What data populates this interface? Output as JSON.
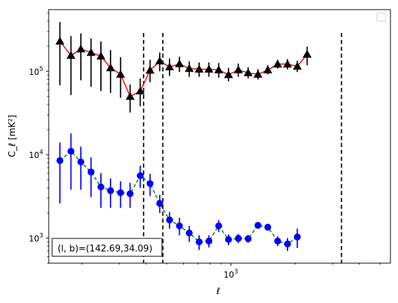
{
  "chart_data": {
    "type": "scatter",
    "title": "",
    "xlabel": "ℓ",
    "ylabel": "C_ℓ [mK²]",
    "x_scale": "log",
    "y_scale": "log",
    "xlim": [
      140,
      5600
    ],
    "ylim": [
      500,
      550000
    ],
    "x_ticks": [
      {
        "value": 1000,
        "label": "10^3"
      }
    ],
    "y_ticks": [
      {
        "value": 1000,
        "label": "10^3"
      },
      {
        "value": 10000,
        "label": "10^4"
      },
      {
        "value": 100000,
        "label": "10^5"
      }
    ],
    "vertical_lines": [
      390,
      480,
      3300
    ],
    "legend_placement": "upper-right (empty)",
    "annotation": "(l, b)=(142.69,34.09)",
    "series": [
      {
        "color": "#ff0000",
        "marker": "triangle",
        "marker_color": "#000000",
        "errorbar_color": "#000000",
        "line_style": "solid",
        "points": [
          {
            "x": 158,
            "y": 230000,
            "lo": 68000,
            "hi": 390000
          },
          {
            "x": 178,
            "y": 155000,
            "lo": 52000,
            "hi": 265000
          },
          {
            "x": 198,
            "y": 185000,
            "lo": 78000,
            "hi": 285000
          },
          {
            "x": 221,
            "y": 168000,
            "lo": 65000,
            "hi": 248000
          },
          {
            "x": 246,
            "y": 152000,
            "lo": 58000,
            "hi": 228000
          },
          {
            "x": 273,
            "y": 110000,
            "lo": 55000,
            "hi": 180000
          },
          {
            "x": 304,
            "y": 92000,
            "lo": 48000,
            "hi": 148000
          },
          {
            "x": 337,
            "y": 50000,
            "lo": 32000,
            "hi": 70000
          },
          {
            "x": 376,
            "y": 58000,
            "lo": 38000,
            "hi": 82000
          },
          {
            "x": 418,
            "y": 103000,
            "lo": 74000,
            "hi": 138000
          },
          {
            "x": 464,
            "y": 133000,
            "lo": 100000,
            "hi": 168000
          },
          {
            "x": 516,
            "y": 113000,
            "lo": 88000,
            "hi": 142000
          },
          {
            "x": 574,
            "y": 123000,
            "lo": 98000,
            "hi": 150000
          },
          {
            "x": 638,
            "y": 108000,
            "lo": 86000,
            "hi": 132000
          },
          {
            "x": 710,
            "y": 106000,
            "lo": 86000,
            "hi": 128000
          },
          {
            "x": 789,
            "y": 106000,
            "lo": 86000,
            "hi": 128000
          },
          {
            "x": 877,
            "y": 104000,
            "lo": 84000,
            "hi": 126000
          },
          {
            "x": 975,
            "y": 91000,
            "lo": 76000,
            "hi": 110000
          },
          {
            "x": 1084,
            "y": 104000,
            "lo": 86000,
            "hi": 124000
          },
          {
            "x": 1205,
            "y": 96000,
            "lo": 82000,
            "hi": 112000
          },
          {
            "x": 1340,
            "y": 92000,
            "lo": 80000,
            "hi": 106000
          },
          {
            "x": 1490,
            "y": 104000,
            "lo": 92000,
            "hi": 118000
          },
          {
            "x": 1657,
            "y": 122000,
            "lo": 108000,
            "hi": 138000
          },
          {
            "x": 1843,
            "y": 122000,
            "lo": 106000,
            "hi": 140000
          },
          {
            "x": 2049,
            "y": 115000,
            "lo": 98000,
            "hi": 134000
          },
          {
            "x": 2278,
            "y": 160000,
            "lo": 118000,
            "hi": 198000
          }
        ]
      },
      {
        "color": "#008000",
        "marker": "circle",
        "marker_color": "#0000ff",
        "errorbar_color": "#0000ff",
        "line_style": "dashed",
        "points": [
          {
            "x": 158,
            "y": 8500,
            "lo": 2600,
            "hi": 14000
          },
          {
            "x": 178,
            "y": 11000,
            "lo": 3800,
            "hi": 18000
          },
          {
            "x": 198,
            "y": 8200,
            "lo": 3800,
            "hi": 12500
          },
          {
            "x": 221,
            "y": 6200,
            "lo": 3100,
            "hi": 9300
          },
          {
            "x": 246,
            "y": 4100,
            "lo": 2300,
            "hi": 6000
          },
          {
            "x": 273,
            "y": 3700,
            "lo": 2300,
            "hi": 5200
          },
          {
            "x": 304,
            "y": 3500,
            "lo": 2300,
            "hi": 4800
          },
          {
            "x": 337,
            "y": 3400,
            "lo": 2300,
            "hi": 4600
          },
          {
            "x": 376,
            "y": 5600,
            "lo": 4000,
            "hi": 7400
          },
          {
            "x": 418,
            "y": 4500,
            "lo": 3200,
            "hi": 5900
          },
          {
            "x": 464,
            "y": 2600,
            "lo": 2000,
            "hi": 3300
          },
          {
            "x": 516,
            "y": 1650,
            "lo": 1300,
            "hi": 2050
          },
          {
            "x": 574,
            "y": 1400,
            "lo": 1080,
            "hi": 1750
          },
          {
            "x": 638,
            "y": 1150,
            "lo": 900,
            "hi": 1400
          },
          {
            "x": 710,
            "y": 900,
            "lo": 720,
            "hi": 1080
          },
          {
            "x": 789,
            "y": 920,
            "lo": 770,
            "hi": 1080
          },
          {
            "x": 877,
            "y": 1400,
            "lo": 1180,
            "hi": 1640
          },
          {
            "x": 975,
            "y": 960,
            "lo": 820,
            "hi": 1110
          },
          {
            "x": 1084,
            "y": 990,
            "lo": 870,
            "hi": 1120
          },
          {
            "x": 1205,
            "y": 980,
            "lo": 880,
            "hi": 1090
          },
          {
            "x": 1340,
            "y": 1420,
            "lo": 1300,
            "hi": 1550
          },
          {
            "x": 1490,
            "y": 1350,
            "lo": 1230,
            "hi": 1480
          },
          {
            "x": 1657,
            "y": 920,
            "lo": 800,
            "hi": 1050
          },
          {
            "x": 1843,
            "y": 850,
            "lo": 700,
            "hi": 1000
          },
          {
            "x": 2049,
            "y": 1030,
            "lo": 760,
            "hi": 1300
          }
        ]
      }
    ]
  }
}
